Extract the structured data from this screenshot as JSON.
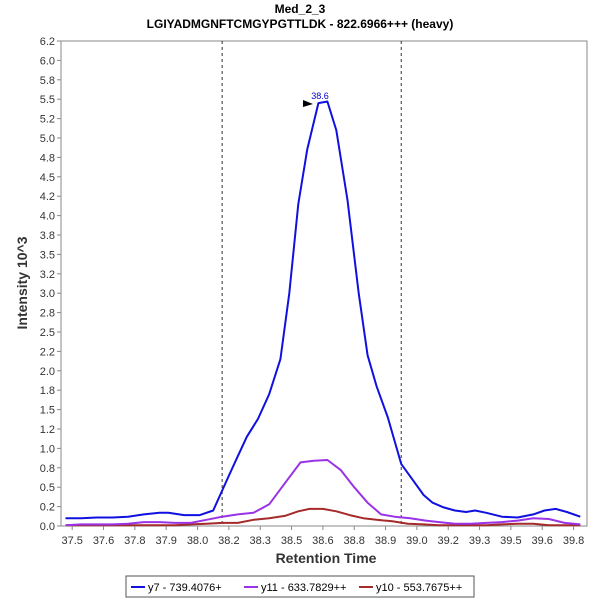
{
  "chart_data": {
    "type": "line",
    "title": "Med_2_3",
    "subtitle": "LGIYADMGNFTCMGYPGTTLDK - 822.6966+++ (heavy)",
    "xlabel": "Retention Time",
    "ylabel": "Intensity 10^3",
    "xlim": [
      37.45,
      39.8
    ],
    "ylim": [
      0.0,
      6.25
    ],
    "x_ticks": [
      "37.5",
      "37.6",
      "37.8",
      "37.9",
      "38.0",
      "38.2",
      "38.3",
      "38.5",
      "38.6",
      "38.8",
      "38.9",
      "39.0",
      "39.2",
      "39.3",
      "39.5",
      "39.6",
      "39.8"
    ],
    "x_tick_values": [
      37.5,
      37.64,
      37.78,
      37.92,
      38.06,
      38.2,
      38.34,
      38.48,
      38.62,
      38.76,
      38.9,
      39.04,
      39.18,
      39.32,
      39.46,
      39.6,
      39.74
    ],
    "y_ticks": [
      "0.0",
      "0.2",
      "0.5",
      "0.8",
      "1.0",
      "1.2",
      "1.5",
      "1.8",
      "2.0",
      "2.2",
      "2.5",
      "2.8",
      "3.0",
      "3.2",
      "3.5",
      "3.8",
      "4.0",
      "4.2",
      "4.5",
      "4.8",
      "5.0",
      "5.2",
      "5.5",
      "5.8",
      "6.0",
      "6.2"
    ],
    "y_tick_values": [
      0.0,
      0.25,
      0.5,
      0.75,
      1.0,
      1.25,
      1.5,
      1.75,
      2.0,
      2.25,
      2.5,
      2.75,
      3.0,
      3.25,
      3.5,
      3.75,
      4.0,
      4.25,
      4.5,
      4.75,
      5.0,
      5.25,
      5.5,
      5.75,
      6.0,
      6.25
    ],
    "vertical_markers": [
      38.17,
      38.97
    ],
    "peak_annotation": {
      "label": "38.6",
      "x": 38.57,
      "y": 5.48
    },
    "grid": false,
    "legend_position": "bottom",
    "series": [
      {
        "name": "y7 - 739.4076+",
        "color": "#1010e0",
        "x": [
          37.47,
          37.54,
          37.61,
          37.68,
          37.75,
          37.82,
          37.89,
          37.93,
          38.0,
          38.07,
          38.13,
          38.2,
          38.24,
          38.28,
          38.33,
          38.38,
          38.43,
          38.47,
          38.51,
          38.55,
          38.6,
          38.64,
          38.68,
          38.73,
          38.78,
          38.82,
          38.86,
          38.91,
          38.97,
          39.02,
          39.07,
          39.11,
          39.16,
          39.21,
          39.26,
          39.3,
          39.35,
          39.42,
          39.49,
          39.56,
          39.61,
          39.66,
          39.71,
          39.77
        ],
        "y": [
          0.1,
          0.1,
          0.11,
          0.11,
          0.12,
          0.15,
          0.17,
          0.17,
          0.14,
          0.14,
          0.2,
          0.65,
          0.9,
          1.15,
          1.38,
          1.7,
          2.15,
          3.0,
          4.15,
          4.85,
          5.45,
          5.47,
          5.1,
          4.2,
          3.0,
          2.2,
          1.8,
          1.4,
          0.8,
          0.6,
          0.4,
          0.3,
          0.24,
          0.2,
          0.18,
          0.2,
          0.17,
          0.12,
          0.11,
          0.15,
          0.2,
          0.22,
          0.18,
          0.12
        ]
      },
      {
        "name": "y11 - 633.7829++",
        "color": "#9a33e6",
        "x": [
          37.47,
          37.54,
          37.61,
          37.68,
          37.75,
          37.82,
          37.89,
          37.96,
          38.03,
          38.1,
          38.17,
          38.24,
          38.31,
          38.38,
          38.45,
          38.52,
          38.58,
          38.64,
          38.7,
          38.76,
          38.82,
          38.88,
          38.94,
          39.01,
          39.08,
          39.14,
          39.21,
          39.28,
          39.35,
          39.42,
          39.49,
          39.56,
          39.63,
          39.7,
          39.77
        ],
        "y": [
          0.01,
          0.02,
          0.02,
          0.02,
          0.03,
          0.05,
          0.05,
          0.04,
          0.04,
          0.08,
          0.12,
          0.15,
          0.17,
          0.28,
          0.55,
          0.82,
          0.84,
          0.85,
          0.72,
          0.5,
          0.3,
          0.15,
          0.12,
          0.1,
          0.07,
          0.05,
          0.03,
          0.03,
          0.04,
          0.05,
          0.07,
          0.1,
          0.09,
          0.04,
          0.02
        ]
      },
      {
        "name": "y10 - 553.7675++",
        "color": "#a52a2a",
        "x": [
          37.47,
          37.54,
          37.61,
          37.68,
          37.75,
          37.82,
          37.89,
          37.96,
          38.03,
          38.1,
          38.17,
          38.24,
          38.31,
          38.38,
          38.45,
          38.51,
          38.56,
          38.62,
          38.68,
          38.74,
          38.8,
          38.86,
          38.93,
          39.0,
          39.07,
          39.14,
          39.21,
          39.28,
          39.35,
          39.42,
          39.49,
          39.56,
          39.63,
          39.7,
          39.77
        ],
        "y": [
          0.01,
          0.01,
          0.01,
          0.01,
          0.01,
          0.01,
          0.01,
          0.01,
          0.02,
          0.03,
          0.04,
          0.04,
          0.08,
          0.1,
          0.13,
          0.19,
          0.22,
          0.22,
          0.19,
          0.14,
          0.1,
          0.08,
          0.06,
          0.03,
          0.02,
          0.01,
          0.01,
          0.01,
          0.01,
          0.02,
          0.03,
          0.03,
          0.01,
          0.01,
          0.01
        ]
      }
    ]
  }
}
